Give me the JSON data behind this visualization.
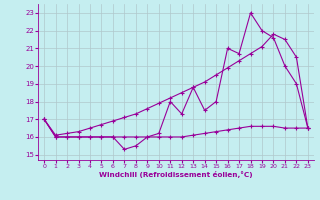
{
  "xlabel": "Windchill (Refroidissement éolien,°C)",
  "bg_color": "#c5eef0",
  "line_color": "#990099",
  "grid_color": "#b0c8cc",
  "ylim": [
    14.7,
    23.5
  ],
  "xlim": [
    -0.5,
    23.5
  ],
  "yticks": [
    15,
    16,
    17,
    18,
    19,
    20,
    21,
    22,
    23
  ],
  "xticks": [
    0,
    1,
    2,
    3,
    4,
    5,
    6,
    7,
    8,
    9,
    10,
    11,
    12,
    13,
    14,
    15,
    16,
    17,
    18,
    19,
    20,
    21,
    22,
    23
  ],
  "hours": [
    0,
    1,
    2,
    3,
    4,
    5,
    6,
    7,
    8,
    9,
    10,
    11,
    12,
    13,
    14,
    15,
    16,
    17,
    18,
    19,
    20,
    21,
    22,
    23
  ],
  "temp_jagged": [
    17.0,
    16.0,
    16.0,
    16.0,
    16.0,
    16.0,
    16.0,
    15.3,
    15.5,
    16.0,
    16.2,
    18.0,
    17.3,
    18.8,
    17.5,
    18.0,
    21.0,
    20.7,
    23.0,
    22.0,
    21.6,
    20.0,
    19.0,
    16.5
  ],
  "temp_diagonal": [
    17.0,
    16.1,
    16.2,
    16.3,
    16.5,
    16.7,
    16.9,
    17.1,
    17.3,
    17.6,
    17.9,
    18.2,
    18.5,
    18.8,
    19.1,
    19.5,
    19.9,
    20.3,
    20.7,
    21.1,
    21.8,
    21.5,
    20.5,
    16.5
  ],
  "temp_flat": [
    17.0,
    16.0,
    16.0,
    16.0,
    16.0,
    16.0,
    16.0,
    16.0,
    16.0,
    16.0,
    16.0,
    16.0,
    16.0,
    16.1,
    16.2,
    16.3,
    16.4,
    16.5,
    16.6,
    16.6,
    16.6,
    16.5,
    16.5,
    16.5
  ]
}
